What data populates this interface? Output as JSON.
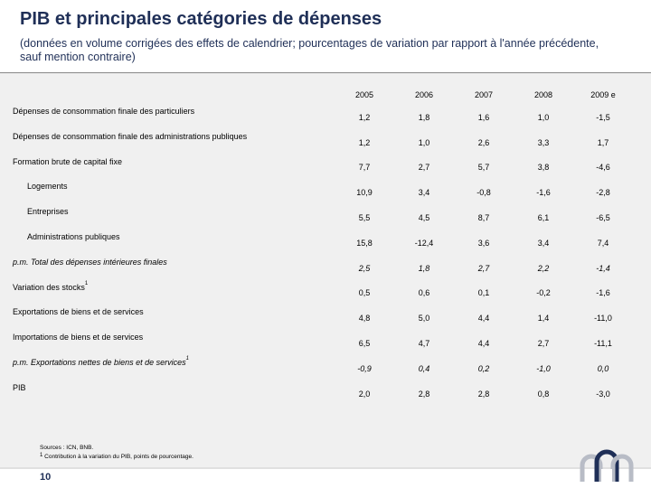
{
  "header": {
    "title": "PIB et principales catégories de dépenses",
    "subtitle": "(données en volume corrigées des effets de calendrier; pourcentages de variation par rapport à l'année précédente, sauf mention contraire)"
  },
  "table": {
    "years": [
      "2005",
      "2006",
      "2007",
      "2008",
      "2009 e"
    ],
    "rows": [
      {
        "label": "Dépenses de consommation finale des particuliers",
        "values": [
          "1,2",
          "1,8",
          "1,6",
          "1,0",
          "-1,5"
        ]
      },
      {
        "label": "Dépenses de consommation finale des administrations publiques",
        "values": [
          "1,2",
          "1,0",
          "2,6",
          "3,3",
          "1,7"
        ]
      },
      {
        "label": "Formation brute de capital fixe",
        "values": [
          "7,7",
          "2,7",
          "5,7",
          "3,8",
          "-4,6"
        ]
      },
      {
        "label": "Logements",
        "values": [
          "10,9",
          "3,4",
          "-0,8",
          "-1,6",
          "-2,8"
        ]
      },
      {
        "label": "Entreprises",
        "values": [
          "5,5",
          "4,5",
          "8,7",
          "6,1",
          "-6,5"
        ]
      },
      {
        "label": "Administrations publiques",
        "values": [
          "15,8",
          "-12,4",
          "3,6",
          "3,4",
          "7,4"
        ]
      },
      {
        "label": "p.m. Total des dépenses intérieures finales",
        "values": [
          "2,5",
          "1,8",
          "2,7",
          "2,2",
          "-1,4"
        ]
      },
      {
        "label": "Variation des stocks",
        "sup": "1",
        "values": [
          "0,5",
          "0,6",
          "0,1",
          "-0,2",
          "-1,6"
        ]
      },
      {
        "label": "Exportations de biens et de services",
        "values": [
          "4,8",
          "5,0",
          "4,4",
          "1,4",
          "-11,0"
        ]
      },
      {
        "label": "Importations de biens et de services",
        "values": [
          "6,5",
          "4,7",
          "4,4",
          "2,7",
          "-11,1"
        ]
      },
      {
        "label": "p.m. Exportations nettes de biens et de services",
        "sup": "1",
        "values": [
          "-0,9",
          "0,4",
          "0,2",
          "-1,0",
          "0,0"
        ]
      },
      {
        "label": "PIB",
        "values": [
          "2,0",
          "2,8",
          "2,8",
          "0,8",
          "-3,0"
        ]
      }
    ]
  },
  "footer": {
    "sources": "Sources : ICN, BNB.",
    "note_mark": "1",
    "note": "Contribution à la variation du PIB, points de pourcentage.",
    "page_number": "10"
  },
  "logo_icon": "nbb-logo-icon",
  "colors": {
    "title": "#1f2f57",
    "panel": "#f0f0f0"
  }
}
